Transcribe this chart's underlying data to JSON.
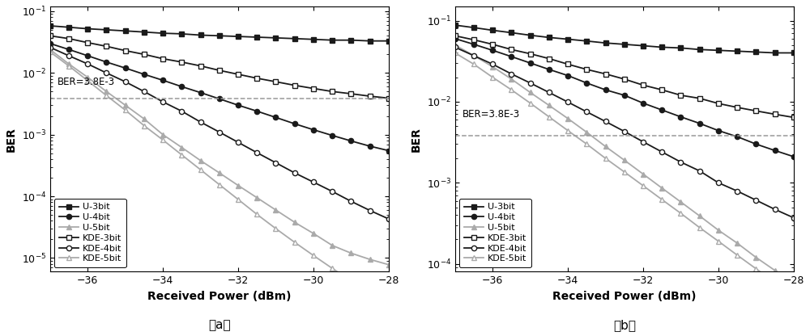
{
  "x": [
    -37,
    -36.5,
    -36,
    -35.5,
    -35,
    -34.5,
    -34,
    -33.5,
    -33,
    -32.5,
    -32,
    -31.5,
    -31,
    -30.5,
    -30,
    -29.5,
    -29,
    -28.5,
    -28
  ],
  "panel_a": {
    "U3bit": [
      0.058,
      0.055,
      0.052,
      0.05,
      0.048,
      0.046,
      0.044,
      0.043,
      0.041,
      0.04,
      0.039,
      0.038,
      0.037,
      0.036,
      0.035,
      0.034,
      0.034,
      0.033,
      0.033
    ],
    "U4bit": [
      0.03,
      0.024,
      0.019,
      0.015,
      0.012,
      0.0095,
      0.0076,
      0.006,
      0.0048,
      0.0038,
      0.003,
      0.0024,
      0.0019,
      0.0015,
      0.0012,
      0.00097,
      0.00079,
      0.00065,
      0.00055
    ],
    "U5bit": [
      0.024,
      0.014,
      0.0085,
      0.005,
      0.003,
      0.0018,
      0.001,
      0.00062,
      0.00038,
      0.00024,
      0.00015,
      9.5e-05,
      6e-05,
      3.8e-05,
      2.5e-05,
      1.6e-05,
      1.2e-05,
      9.5e-06,
      7.8e-06
    ],
    "KDE3bit": [
      0.04,
      0.036,
      0.031,
      0.027,
      0.023,
      0.02,
      0.017,
      0.015,
      0.013,
      0.011,
      0.0095,
      0.0082,
      0.0072,
      0.0063,
      0.0056,
      0.005,
      0.0046,
      0.0042,
      0.0039
    ],
    "KDE4bit": [
      0.026,
      0.019,
      0.014,
      0.01,
      0.0072,
      0.005,
      0.0034,
      0.0024,
      0.0016,
      0.0011,
      0.00075,
      0.00051,
      0.00035,
      0.00024,
      0.00017,
      0.00012,
      8.3e-05,
      5.9e-05,
      4.3e-05
    ],
    "KDE5bit": [
      0.022,
      0.013,
      0.0075,
      0.0043,
      0.0025,
      0.0014,
      0.00082,
      0.00047,
      0.00027,
      0.000155,
      8.9e-05,
      5.1e-05,
      3e-05,
      1.8e-05,
      1.1e-05,
      6.8e-06,
      4.3e-06,
      2.8e-06,
      1.9e-06
    ]
  },
  "panel_b": {
    "U3bit": [
      0.088,
      0.082,
      0.076,
      0.071,
      0.066,
      0.062,
      0.059,
      0.056,
      0.053,
      0.051,
      0.049,
      0.047,
      0.046,
      0.044,
      0.043,
      0.042,
      0.041,
      0.04,
      0.04
    ],
    "U4bit": [
      0.06,
      0.051,
      0.043,
      0.036,
      0.03,
      0.025,
      0.021,
      0.017,
      0.014,
      0.012,
      0.0096,
      0.0079,
      0.0065,
      0.0054,
      0.0044,
      0.0037,
      0.003,
      0.0025,
      0.0021
    ],
    "U5bit": [
      0.05,
      0.037,
      0.027,
      0.019,
      0.013,
      0.009,
      0.0062,
      0.0042,
      0.0028,
      0.0019,
      0.00128,
      0.00086,
      0.00058,
      0.00039,
      0.00026,
      0.00018,
      0.00012,
      8.3e-05,
      5.7e-05
    ],
    "KDE3bit": [
      0.065,
      0.058,
      0.051,
      0.044,
      0.039,
      0.034,
      0.029,
      0.025,
      0.022,
      0.019,
      0.016,
      0.014,
      0.012,
      0.011,
      0.0095,
      0.0085,
      0.0077,
      0.007,
      0.0064
    ],
    "KDE4bit": [
      0.047,
      0.037,
      0.029,
      0.022,
      0.017,
      0.013,
      0.0099,
      0.0075,
      0.0057,
      0.0043,
      0.0032,
      0.0024,
      0.0018,
      0.0014,
      0.001,
      0.00079,
      0.00061,
      0.00047,
      0.00037
    ],
    "KDE5bit": [
      0.04,
      0.029,
      0.02,
      0.014,
      0.0096,
      0.0065,
      0.0044,
      0.003,
      0.002,
      0.00136,
      0.00092,
      0.00062,
      0.00042,
      0.00028,
      0.00019,
      0.000128,
      8.7e-05,
      5.9e-05,
      4e-05
    ]
  },
  "ber_line": 0.0038,
  "xlim": [
    -37,
    -28
  ],
  "panel_a_ylim": [
    6e-06,
    0.12
  ],
  "panel_b_ylim": [
    8e-05,
    0.15
  ],
  "xlabel": "Received Power (dBm)",
  "ylabel": "BER",
  "label_a": "（a）",
  "label_b": "（b）",
  "ber_text": "BER=3.8E-3",
  "legend_labels": [
    "U-3bit",
    "U-4bit",
    "U-5bit",
    "KDE-3bit",
    "KDE-4bit",
    "KDE-5bit"
  ],
  "dark_color": "#1a1a1a",
  "medium_color": "#555555",
  "light_color": "#aaaaaa"
}
